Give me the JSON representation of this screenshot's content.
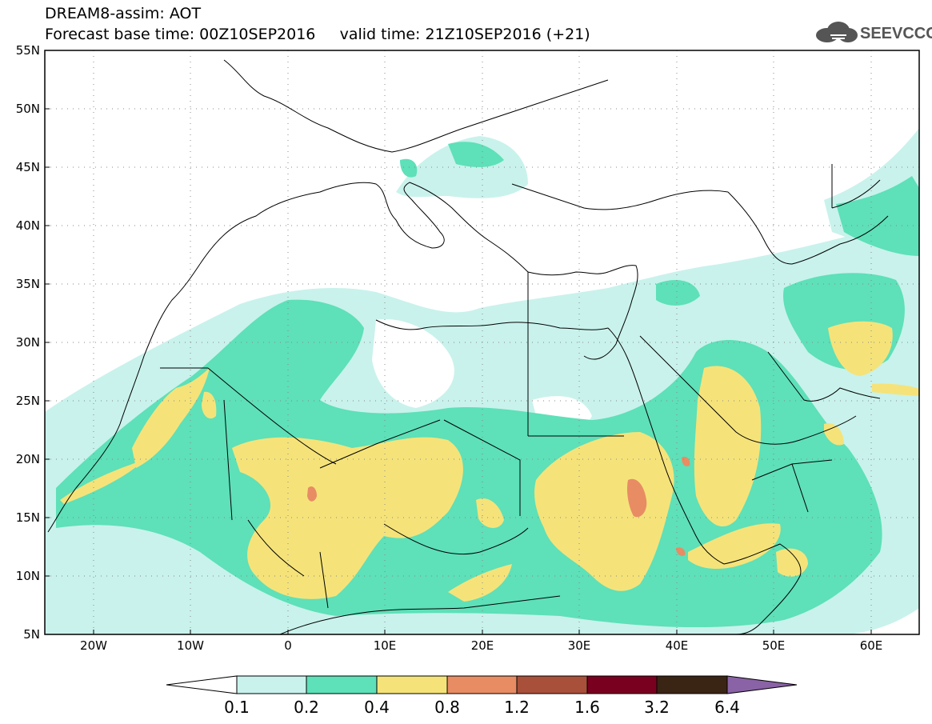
{
  "title": {
    "line1": "DREAM8-assim: AOT",
    "line2": "Forecast base time: 00Z10SEP2016     valid time: 21Z10SEP2016 (+21)"
  },
  "logo": {
    "text": "SEEVCCC"
  },
  "map": {
    "lat_ticks": [
      "55N",
      "50N",
      "45N",
      "40N",
      "35N",
      "30N",
      "25N",
      "20N",
      "15N",
      "10N",
      "5N"
    ],
    "lon_ticks": [
      "20W",
      "10W",
      "0",
      "10E",
      "20E",
      "30E",
      "40E",
      "50E",
      "60E"
    ],
    "grid": true
  },
  "colorbar": {
    "labels": [
      "0.1",
      "0.2",
      "0.4",
      "0.8",
      "1.2",
      "1.6",
      "3.2",
      "6.4"
    ],
    "colors": [
      "#ffffff",
      "#c9f2ec",
      "#5ee0b8",
      "#f5e37a",
      "#e88c64",
      "#a9503a",
      "#7a0020",
      "#3a2414",
      "#8a62a6"
    ]
  }
}
